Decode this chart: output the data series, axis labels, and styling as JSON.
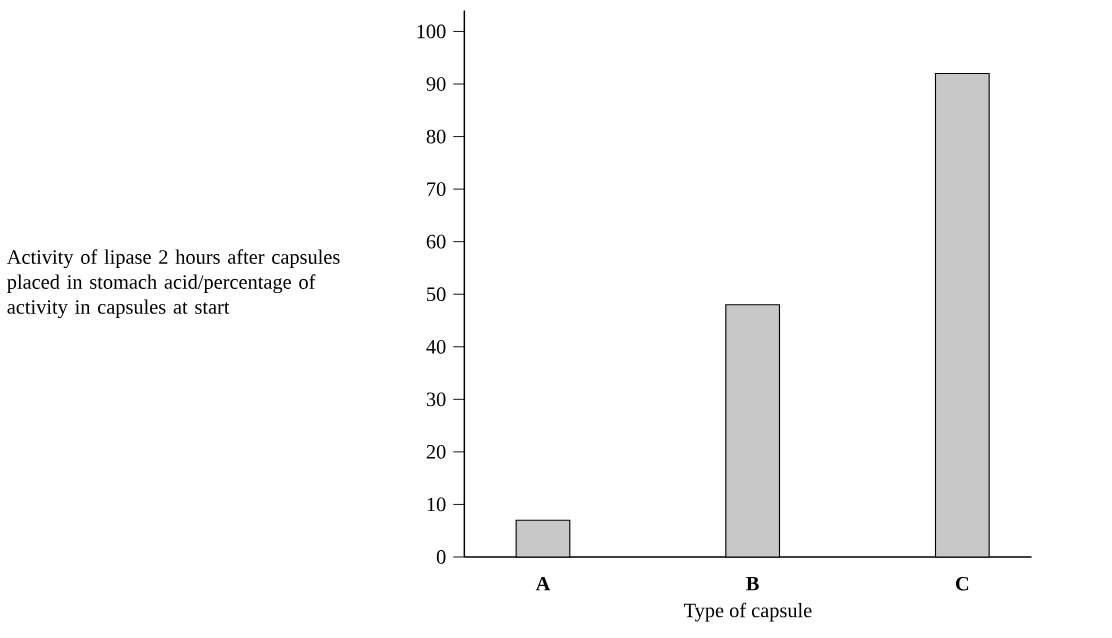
{
  "chart_data": {
    "type": "bar",
    "xlabel": "Type of capsule",
    "ylabel": "Activity of lipase 2 hours after capsules placed in stomach acid/percentage of activity in capsules at start",
    "categories": [
      "A",
      "B",
      "C"
    ],
    "values": [
      7,
      48,
      92
    ],
    "color": "#c8c8c8",
    "ylim": [
      0,
      104
    ],
    "yticks": [
      0,
      10,
      20,
      30,
      40,
      50,
      60,
      70,
      80,
      90,
      100
    ]
  }
}
